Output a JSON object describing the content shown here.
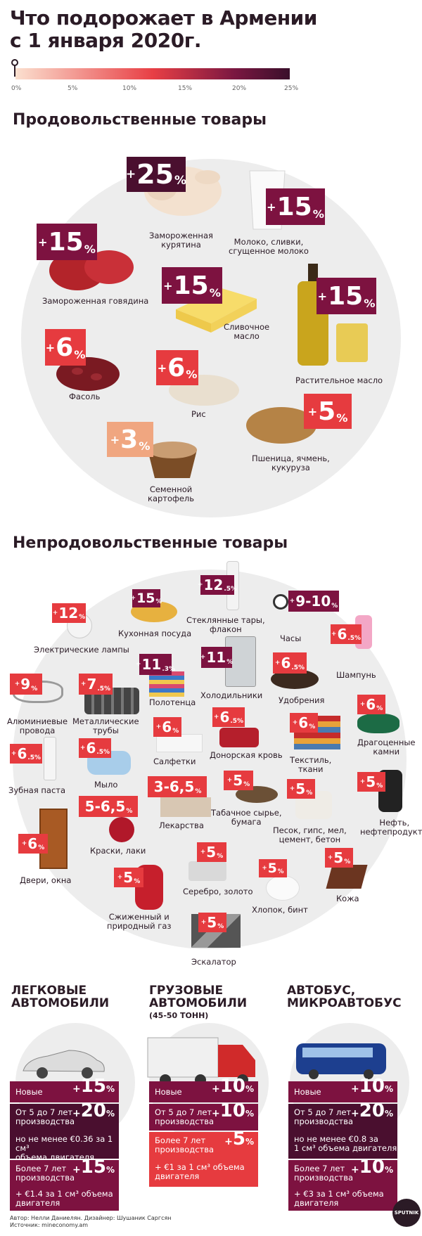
{
  "title": {
    "line1": "Что подорожает в Армении",
    "line2": "с 1 января 2020г."
  },
  "scale": {
    "ticks": [
      "0%",
      "5%",
      "10%",
      "15%",
      "20%",
      "25%"
    ]
  },
  "food": {
    "heading": "Продовольственные товары",
    "items": [
      {
        "value": "25",
        "label1": "Замороженная",
        "label2": "курятина"
      },
      {
        "value": "15",
        "label1": "Молоко, сливки,",
        "label2": "сгущенное молоко"
      },
      {
        "value": "15",
        "label1": "Замороженная говядина",
        "label2": ""
      },
      {
        "value": "15",
        "label1": "Сливочное",
        "label2": "масло"
      },
      {
        "value": "15",
        "label1": "Растительное масло",
        "label2": ""
      },
      {
        "value": "6",
        "label1": "Фасоль",
        "label2": ""
      },
      {
        "value": "6",
        "label1": "Рис",
        "label2": ""
      },
      {
        "value": "5",
        "label1": "Пшеница, ячмень,",
        "label2": "кукуруза"
      },
      {
        "value": "3",
        "label1": "Семенной",
        "label2": "картофель"
      }
    ]
  },
  "nonfood": {
    "heading": "Непродовольственные товары",
    "items": [
      {
        "value": "12",
        "unit": "%",
        "label1": "Электрические лампы",
        "label2": ""
      },
      {
        "value": "15",
        "unit": "%",
        "label1": "Кухонная посуда",
        "label2": ""
      },
      {
        "value": "12",
        "unit": ".5%",
        "label1": "Стеклянные тары,",
        "label2": "флакон"
      },
      {
        "value": "9-10",
        "unit": "%",
        "label1": "Часы",
        "label2": ""
      },
      {
        "value": "6",
        "unit": ".5%",
        "label1": "Шампунь",
        "label2": ""
      },
      {
        "value": "9",
        "unit": "%",
        "label1": "Алюминиевые",
        "label2": "провода"
      },
      {
        "value": "7",
        "unit": ".5%",
        "label1": "Металлические",
        "label2": "трубы"
      },
      {
        "value": "11",
        "unit": ".3%",
        "label1": "Полотенца",
        "label2": ""
      },
      {
        "value": "11",
        "unit": "%",
        "label1": "Холодильники",
        "label2": ""
      },
      {
        "value": "6",
        "unit": ".5%",
        "label1": "Удобрения",
        "label2": ""
      },
      {
        "value": "6",
        "unit": "%",
        "label1": "Драгоценные",
        "label2": "камни"
      },
      {
        "value": "6",
        "unit": ".5%",
        "label1": "Зубная паста",
        "label2": ""
      },
      {
        "value": "6",
        "unit": ".5%",
        "label1": "Мыло",
        "label2": ""
      },
      {
        "value": "6",
        "unit": "%",
        "label1": "Салфетки",
        "label2": ""
      },
      {
        "value": "6",
        "unit": ".5%",
        "label1": "Донорская кровь",
        "label2": ""
      },
      {
        "value": "6",
        "unit": "%",
        "label1": "Текстиль,",
        "label2": "ткани"
      },
      {
        "value": "5",
        "unit": "%",
        "label1": "Нефть,",
        "label2": "нефтепродукты"
      },
      {
        "value": "3-6,5",
        "unit": "%",
        "label1": "Лекарства",
        "label2": ""
      },
      {
        "value": "5",
        "unit": "%",
        "label1": "Табачное сырье,",
        "label2": "бумага"
      },
      {
        "value": "5",
        "unit": "%",
        "label1": "Песок, гипс, мел,",
        "label2": "цемент, бетон"
      },
      {
        "value": "5-6,5",
        "unit": "%",
        "label1": "Краски, лаки",
        "label2": ""
      },
      {
        "value": "6",
        "unit": "%",
        "label1": "Двери, окна",
        "label2": ""
      },
      {
        "value": "5",
        "unit": "%",
        "label1": "Серебро, золото",
        "label2": ""
      },
      {
        "value": "5",
        "unit": "%",
        "label1": "Хлопок, бинт",
        "label2": ""
      },
      {
        "value": "5",
        "unit": "%",
        "label1": "Кожа",
        "label2": ""
      },
      {
        "value": "5",
        "unit": "%",
        "label1": "Сжиженный и",
        "label2": "природный газ"
      },
      {
        "value": "5",
        "unit": "%",
        "label1": "Эскалатор",
        "label2": ""
      }
    ]
  },
  "vehicles": [
    {
      "title1": "Легковые",
      "title2": "автомобили",
      "sub": "",
      "rows": [
        {
          "text1": "Новые",
          "text2": "",
          "text3": "",
          "value": "15"
        },
        {
          "text1": "От 5 до 7 лет",
          "text2": "производства",
          "text3": "",
          "value": "20"
        },
        {
          "text1": "но не менее €0.36 за 1 см³",
          "text2": "объема двигателя",
          "text3": "",
          "value": ""
        },
        {
          "text1": "Более 7 лет",
          "text2": "производства",
          "text3": "",
          "value": "15"
        },
        {
          "text1": "+ €1.4 за 1 см³ объема",
          "text2": "двигателя",
          "text3": "",
          "value": ""
        }
      ]
    },
    {
      "title1": "Грузовые",
      "title2": "автомобили",
      "sub": "(45-50 тонн)",
      "rows": [
        {
          "text1": "Новые",
          "text2": "",
          "text3": "",
          "value": "10"
        },
        {
          "text1": "От 5 до 7 лет",
          "text2": "производства",
          "text3": "",
          "value": "10"
        },
        {
          "text1": "Более 7 лет",
          "text2": "производства",
          "text3": "",
          "value": "5"
        },
        {
          "text1": "+ €1 за 1 см³ объема",
          "text2": "двигателя",
          "text3": "",
          "value": ""
        }
      ]
    },
    {
      "title1": "Автобус,",
      "title2": "микроавтобус",
      "sub": "",
      "rows": [
        {
          "text1": "Новые",
          "text2": "",
          "text3": "",
          "value": "10"
        },
        {
          "text1": "От 5 до 7 лет",
          "text2": "производства",
          "text3": "",
          "value": "20"
        },
        {
          "text1": "но не менее €0.8 за",
          "text2": "1 см³ объема двигателя",
          "text3": "",
          "value": ""
        },
        {
          "text1": "Более 7 лет",
          "text2": "производства",
          "text3": "",
          "value": "10"
        },
        {
          "text1": "+ €3 за 1 см³ объема",
          "text2": "двигателя",
          "text3": "",
          "value": ""
        }
      ]
    }
  ],
  "footer": {
    "line1": "Автор: Нелли Даниелян. Дизайнер: Шушаник Саргсян",
    "line2": "Источник: mineconomy.am"
  },
  "logo": "SPUTNIK"
}
